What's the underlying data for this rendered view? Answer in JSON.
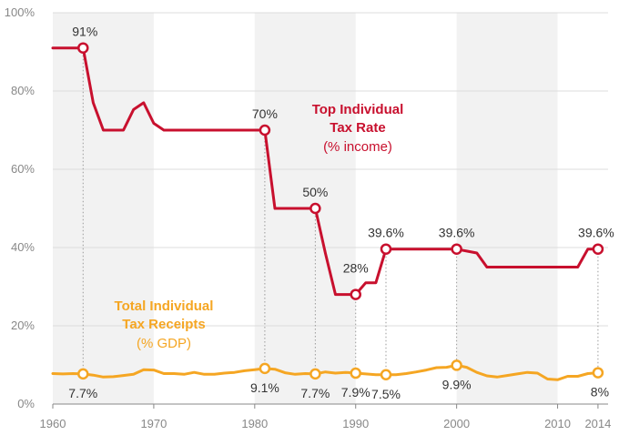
{
  "chart_data": {
    "type": "line",
    "xlim": [
      1960,
      2015
    ],
    "ylim": [
      0,
      100
    ],
    "x_ticks": [
      1960,
      1970,
      1980,
      1990,
      2000,
      2010,
      2014
    ],
    "y_ticks": [
      {
        "value": 0,
        "label": "0%"
      },
      {
        "value": 20,
        "label": "20%"
      },
      {
        "value": 40,
        "label": "40%"
      },
      {
        "value": 60,
        "label": "60%"
      },
      {
        "value": 80,
        "label": "80%"
      },
      {
        "value": 100,
        "label": "100%"
      }
    ],
    "grid": "horizontal",
    "background_bands": [
      [
        1960,
        1970
      ],
      [
        1980,
        1990
      ],
      [
        2000,
        2010
      ]
    ],
    "colors": {
      "top_rate": "#c8102e",
      "receipts": "#f5a623",
      "band": "#f2f2f2",
      "grid": "#dcdcdc",
      "axis": "#888888"
    },
    "series": [
      {
        "key": "top_rate",
        "title_line1": "Top Individual",
        "title_line2": "Tax Rate",
        "subtitle": "(% income)",
        "points": [
          [
            1960,
            91
          ],
          [
            1963,
            91
          ],
          [
            1964,
            77
          ],
          [
            1965,
            70
          ],
          [
            1966,
            70
          ],
          [
            1967,
            70
          ],
          [
            1968,
            75.25
          ],
          [
            1969,
            77
          ],
          [
            1970,
            71.75
          ],
          [
            1971,
            70
          ],
          [
            1972,
            70
          ],
          [
            1981,
            70
          ],
          [
            1982,
            50
          ],
          [
            1983,
            50
          ],
          [
            1986,
            50
          ],
          [
            1987,
            38.5
          ],
          [
            1988,
            28
          ],
          [
            1990,
            28
          ],
          [
            1991,
            31
          ],
          [
            1992,
            31
          ],
          [
            1993,
            39.6
          ],
          [
            2000,
            39.6
          ],
          [
            2001,
            39.1
          ],
          [
            2002,
            38.6
          ],
          [
            2003,
            35
          ],
          [
            2012,
            35
          ],
          [
            2013,
            39.6
          ],
          [
            2014,
            39.6
          ]
        ],
        "annotations": [
          {
            "x": 1963,
            "y": 91,
            "label": "91%"
          },
          {
            "x": 1981,
            "y": 70,
            "label": "70%"
          },
          {
            "x": 1986,
            "y": 50,
            "label": "50%"
          },
          {
            "x": 1990,
            "y": 28,
            "label": "28%"
          },
          {
            "x": 1993,
            "y": 39.6,
            "label": "39.6%"
          },
          {
            "x": 2000,
            "y": 39.6,
            "label": "39.6%"
          },
          {
            "x": 2014,
            "y": 39.6,
            "label": "39.6%"
          }
        ]
      },
      {
        "key": "receipts",
        "title_line1": "Total Individual",
        "title_line2": "Tax Receipts",
        "subtitle": "(% GDP)",
        "points": [
          [
            1960,
            7.8
          ],
          [
            1961,
            7.7
          ],
          [
            1962,
            7.8
          ],
          [
            1963,
            7.7
          ],
          [
            1964,
            7.4
          ],
          [
            1965,
            6.9
          ],
          [
            1966,
            7.0
          ],
          [
            1967,
            7.3
          ],
          [
            1968,
            7.6
          ],
          [
            1969,
            8.8
          ],
          [
            1970,
            8.7
          ],
          [
            1971,
            7.8
          ],
          [
            1972,
            7.8
          ],
          [
            1973,
            7.6
          ],
          [
            1974,
            8.1
          ],
          [
            1975,
            7.6
          ],
          [
            1976,
            7.6
          ],
          [
            1977,
            7.9
          ],
          [
            1978,
            8.1
          ],
          [
            1979,
            8.5
          ],
          [
            1980,
            8.8
          ],
          [
            1981,
            9.1
          ],
          [
            1982,
            8.9
          ],
          [
            1983,
            8.0
          ],
          [
            1984,
            7.6
          ],
          [
            1985,
            7.8
          ],
          [
            1986,
            7.7
          ],
          [
            1987,
            8.2
          ],
          [
            1988,
            7.9
          ],
          [
            1989,
            8.1
          ],
          [
            1990,
            7.9
          ],
          [
            1991,
            7.7
          ],
          [
            1992,
            7.5
          ],
          [
            1993,
            7.5
          ],
          [
            1994,
            7.5
          ],
          [
            1995,
            7.8
          ],
          [
            1996,
            8.2
          ],
          [
            1997,
            8.7
          ],
          [
            1998,
            9.3
          ],
          [
            1999,
            9.4
          ],
          [
            2000,
            9.9
          ],
          [
            2001,
            9.4
          ],
          [
            2002,
            8.1
          ],
          [
            2003,
            7.2
          ],
          [
            2004,
            6.9
          ],
          [
            2005,
            7.3
          ],
          [
            2006,
            7.7
          ],
          [
            2007,
            8.1
          ],
          [
            2008,
            7.9
          ],
          [
            2009,
            6.4
          ],
          [
            2010,
            6.2
          ],
          [
            2011,
            7.1
          ],
          [
            2012,
            7.1
          ],
          [
            2013,
            7.8
          ],
          [
            2014,
            8.0
          ]
        ],
        "annotations": [
          {
            "x": 1963,
            "y": 7.7,
            "label": "7.7%"
          },
          {
            "x": 1981,
            "y": 9.1,
            "label": "9.1%"
          },
          {
            "x": 1986,
            "y": 7.7,
            "label": "7.7%"
          },
          {
            "x": 1990,
            "y": 7.9,
            "label": "7.9%"
          },
          {
            "x": 1993,
            "y": 7.5,
            "label": "7.5%"
          },
          {
            "x": 2000,
            "y": 9.9,
            "label": "9.9%"
          },
          {
            "x": 2014,
            "y": 8.0,
            "label": "8%"
          }
        ]
      }
    ]
  }
}
